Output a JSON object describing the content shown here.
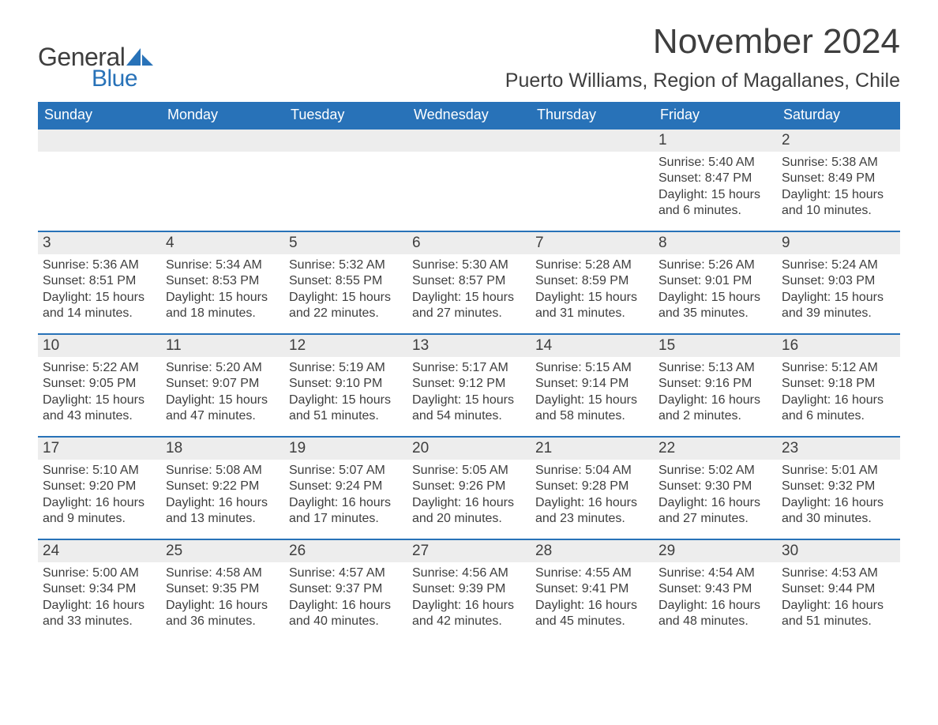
{
  "logo": {
    "word1": "General",
    "word2": "Blue",
    "sail_color": "#2872b8",
    "text_dark": "#3e3e3e"
  },
  "title": "November 2024",
  "location": "Puerto Williams, Region of Magallanes, Chile",
  "colors": {
    "header_bg": "#2872b8",
    "header_text": "#ffffff",
    "daynum_bg": "#ededed",
    "text": "#3e3e3e",
    "row_border": "#2872b8",
    "page_bg": "#ffffff"
  },
  "typography": {
    "title_fontsize": 44,
    "location_fontsize": 25,
    "weekday_fontsize": 18,
    "daynum_fontsize": 19,
    "body_fontsize": 16
  },
  "weekdays": [
    "Sunday",
    "Monday",
    "Tuesday",
    "Wednesday",
    "Thursday",
    "Friday",
    "Saturday"
  ],
  "weeks": [
    [
      {
        "empty": true
      },
      {
        "empty": true
      },
      {
        "empty": true
      },
      {
        "empty": true
      },
      {
        "empty": true
      },
      {
        "day": "1",
        "sunrise": "Sunrise: 5:40 AM",
        "sunset": "Sunset: 8:47 PM",
        "daylight1": "Daylight: 15 hours",
        "daylight2": "and 6 minutes."
      },
      {
        "day": "2",
        "sunrise": "Sunrise: 5:38 AM",
        "sunset": "Sunset: 8:49 PM",
        "daylight1": "Daylight: 15 hours",
        "daylight2": "and 10 minutes."
      }
    ],
    [
      {
        "day": "3",
        "sunrise": "Sunrise: 5:36 AM",
        "sunset": "Sunset: 8:51 PM",
        "daylight1": "Daylight: 15 hours",
        "daylight2": "and 14 minutes."
      },
      {
        "day": "4",
        "sunrise": "Sunrise: 5:34 AM",
        "sunset": "Sunset: 8:53 PM",
        "daylight1": "Daylight: 15 hours",
        "daylight2": "and 18 minutes."
      },
      {
        "day": "5",
        "sunrise": "Sunrise: 5:32 AM",
        "sunset": "Sunset: 8:55 PM",
        "daylight1": "Daylight: 15 hours",
        "daylight2": "and 22 minutes."
      },
      {
        "day": "6",
        "sunrise": "Sunrise: 5:30 AM",
        "sunset": "Sunset: 8:57 PM",
        "daylight1": "Daylight: 15 hours",
        "daylight2": "and 27 minutes."
      },
      {
        "day": "7",
        "sunrise": "Sunrise: 5:28 AM",
        "sunset": "Sunset: 8:59 PM",
        "daylight1": "Daylight: 15 hours",
        "daylight2": "and 31 minutes."
      },
      {
        "day": "8",
        "sunrise": "Sunrise: 5:26 AM",
        "sunset": "Sunset: 9:01 PM",
        "daylight1": "Daylight: 15 hours",
        "daylight2": "and 35 minutes."
      },
      {
        "day": "9",
        "sunrise": "Sunrise: 5:24 AM",
        "sunset": "Sunset: 9:03 PM",
        "daylight1": "Daylight: 15 hours",
        "daylight2": "and 39 minutes."
      }
    ],
    [
      {
        "day": "10",
        "sunrise": "Sunrise: 5:22 AM",
        "sunset": "Sunset: 9:05 PM",
        "daylight1": "Daylight: 15 hours",
        "daylight2": "and 43 minutes."
      },
      {
        "day": "11",
        "sunrise": "Sunrise: 5:20 AM",
        "sunset": "Sunset: 9:07 PM",
        "daylight1": "Daylight: 15 hours",
        "daylight2": "and 47 minutes."
      },
      {
        "day": "12",
        "sunrise": "Sunrise: 5:19 AM",
        "sunset": "Sunset: 9:10 PM",
        "daylight1": "Daylight: 15 hours",
        "daylight2": "and 51 minutes."
      },
      {
        "day": "13",
        "sunrise": "Sunrise: 5:17 AM",
        "sunset": "Sunset: 9:12 PM",
        "daylight1": "Daylight: 15 hours",
        "daylight2": "and 54 minutes."
      },
      {
        "day": "14",
        "sunrise": "Sunrise: 5:15 AM",
        "sunset": "Sunset: 9:14 PM",
        "daylight1": "Daylight: 15 hours",
        "daylight2": "and 58 minutes."
      },
      {
        "day": "15",
        "sunrise": "Sunrise: 5:13 AM",
        "sunset": "Sunset: 9:16 PM",
        "daylight1": "Daylight: 16 hours",
        "daylight2": "and 2 minutes."
      },
      {
        "day": "16",
        "sunrise": "Sunrise: 5:12 AM",
        "sunset": "Sunset: 9:18 PM",
        "daylight1": "Daylight: 16 hours",
        "daylight2": "and 6 minutes."
      }
    ],
    [
      {
        "day": "17",
        "sunrise": "Sunrise: 5:10 AM",
        "sunset": "Sunset: 9:20 PM",
        "daylight1": "Daylight: 16 hours",
        "daylight2": "and 9 minutes."
      },
      {
        "day": "18",
        "sunrise": "Sunrise: 5:08 AM",
        "sunset": "Sunset: 9:22 PM",
        "daylight1": "Daylight: 16 hours",
        "daylight2": "and 13 minutes."
      },
      {
        "day": "19",
        "sunrise": "Sunrise: 5:07 AM",
        "sunset": "Sunset: 9:24 PM",
        "daylight1": "Daylight: 16 hours",
        "daylight2": "and 17 minutes."
      },
      {
        "day": "20",
        "sunrise": "Sunrise: 5:05 AM",
        "sunset": "Sunset: 9:26 PM",
        "daylight1": "Daylight: 16 hours",
        "daylight2": "and 20 minutes."
      },
      {
        "day": "21",
        "sunrise": "Sunrise: 5:04 AM",
        "sunset": "Sunset: 9:28 PM",
        "daylight1": "Daylight: 16 hours",
        "daylight2": "and 23 minutes."
      },
      {
        "day": "22",
        "sunrise": "Sunrise: 5:02 AM",
        "sunset": "Sunset: 9:30 PM",
        "daylight1": "Daylight: 16 hours",
        "daylight2": "and 27 minutes."
      },
      {
        "day": "23",
        "sunrise": "Sunrise: 5:01 AM",
        "sunset": "Sunset: 9:32 PM",
        "daylight1": "Daylight: 16 hours",
        "daylight2": "and 30 minutes."
      }
    ],
    [
      {
        "day": "24",
        "sunrise": "Sunrise: 5:00 AM",
        "sunset": "Sunset: 9:34 PM",
        "daylight1": "Daylight: 16 hours",
        "daylight2": "and 33 minutes."
      },
      {
        "day": "25",
        "sunrise": "Sunrise: 4:58 AM",
        "sunset": "Sunset: 9:35 PM",
        "daylight1": "Daylight: 16 hours",
        "daylight2": "and 36 minutes."
      },
      {
        "day": "26",
        "sunrise": "Sunrise: 4:57 AM",
        "sunset": "Sunset: 9:37 PM",
        "daylight1": "Daylight: 16 hours",
        "daylight2": "and 40 minutes."
      },
      {
        "day": "27",
        "sunrise": "Sunrise: 4:56 AM",
        "sunset": "Sunset: 9:39 PM",
        "daylight1": "Daylight: 16 hours",
        "daylight2": "and 42 minutes."
      },
      {
        "day": "28",
        "sunrise": "Sunrise: 4:55 AM",
        "sunset": "Sunset: 9:41 PM",
        "daylight1": "Daylight: 16 hours",
        "daylight2": "and 45 minutes."
      },
      {
        "day": "29",
        "sunrise": "Sunrise: 4:54 AM",
        "sunset": "Sunset: 9:43 PM",
        "daylight1": "Daylight: 16 hours",
        "daylight2": "and 48 minutes."
      },
      {
        "day": "30",
        "sunrise": "Sunrise: 4:53 AM",
        "sunset": "Sunset: 9:44 PM",
        "daylight1": "Daylight: 16 hours",
        "daylight2": "and 51 minutes."
      }
    ]
  ]
}
